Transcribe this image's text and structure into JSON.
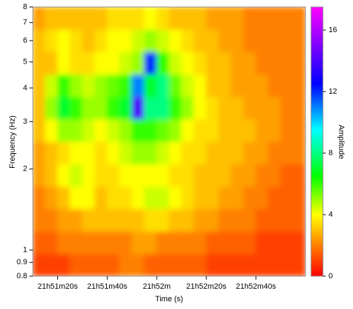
{
  "chart_data": {
    "type": "heatmap",
    "x_label": "Time (s)",
    "y_label": "Frequency (Hz)",
    "z_label": "Amplitude",
    "xbins": [
      78670,
      78675,
      78680,
      78685,
      78690,
      78695,
      78700,
      78705,
      78710,
      78715,
      78720,
      78725,
      78730,
      78735,
      78740,
      78745,
      78750,
      78755,
      78760,
      78765,
      78770,
      78775,
      78780
    ],
    "ybins": [
      0.8,
      0.969,
      1.174,
      1.423,
      1.724,
      2.088,
      2.53,
      3.065,
      3.713,
      4.499,
      5.45,
      6.603,
      8
    ],
    "values": [
      [
        1,
        1,
        1,
        1.5,
        1.5,
        1.5,
        1.5,
        2,
        2,
        1.5,
        1.5,
        1.5,
        1.5,
        1.5,
        1,
        1,
        1,
        1,
        1,
        1,
        1,
        1
      ],
      [
        1.5,
        1.5,
        2,
        2,
        2,
        2,
        2,
        2,
        2.5,
        2.5,
        2,
        2,
        2,
        2,
        1.5,
        1.5,
        1.5,
        1.5,
        1,
        1,
        1,
        1
      ],
      [
        2,
        2,
        2.5,
        2.5,
        3,
        3,
        3,
        3,
        3,
        3.5,
        3.5,
        3,
        3,
        2.5,
        2.5,
        2,
        2,
        2,
        1.5,
        1.5,
        1.5,
        1.5
      ],
      [
        2,
        2.5,
        3,
        4,
        4,
        3,
        3.5,
        3.5,
        4,
        4.5,
        4.5,
        4,
        3.5,
        3,
        3,
        2.5,
        2.5,
        2,
        2,
        1.5,
        1.5,
        1.5
      ],
      [
        2.5,
        3,
        4,
        4.5,
        4,
        3.5,
        3.5,
        4,
        4,
        4,
        4,
        3.5,
        3.5,
        3,
        3,
        3,
        2.5,
        2.5,
        2,
        2,
        1.5,
        1.5
      ],
      [
        2.5,
        3,
        3.5,
        4,
        4,
        3.5,
        4,
        4.5,
        5,
        5,
        4.5,
        4,
        3.5,
        3.5,
        3,
        3,
        3,
        2.5,
        2.5,
        2,
        2,
        2
      ],
      [
        3,
        4,
        5,
        5,
        4.5,
        4,
        4.5,
        5,
        6,
        6,
        5.5,
        5,
        4,
        3.5,
        3.5,
        3,
        3,
        3,
        2.5,
        2.5,
        2,
        2
      ],
      [
        3,
        5,
        7,
        6,
        5,
        5,
        6,
        7,
        14,
        8,
        8,
        6,
        5,
        4,
        3.5,
        3,
        3,
        2.5,
        2.5,
        2.5,
        2,
        2
      ],
      [
        3,
        4.5,
        6,
        5,
        4.5,
        5,
        5.5,
        6,
        11,
        7,
        8,
        5.5,
        4.5,
        4,
        3,
        3,
        2.5,
        2.5,
        2.5,
        2,
        2,
        2
      ],
      [
        3,
        3,
        4,
        3.5,
        3.5,
        4,
        4,
        4.5,
        5,
        12,
        6,
        4.5,
        4,
        3.5,
        3,
        3,
        2.5,
        2.5,
        2,
        2,
        2,
        2
      ],
      [
        3,
        3.5,
        4,
        3.5,
        3,
        3.5,
        4,
        4,
        4.5,
        5,
        4.5,
        4,
        3.5,
        3,
        3,
        2.5,
        2.5,
        2,
        2,
        2,
        2,
        2
      ],
      [
        2.5,
        3,
        3,
        3,
        3,
        3,
        3.5,
        3.5,
        3.5,
        4,
        3.5,
        3,
        3,
        3,
        2.5,
        2.5,
        2.5,
        2,
        2,
        2,
        2,
        2
      ]
    ],
    "xlim": [
      78670,
      78780
    ],
    "xticks": [
      {
        "value": 78680,
        "label": "21h51m20s"
      },
      {
        "value": 78700,
        "label": "21h51m40s"
      },
      {
        "value": 78720,
        "label": "21h52m"
      },
      {
        "value": 78740,
        "label": "21h52m20s"
      },
      {
        "value": 78760,
        "label": "21h52m40s"
      }
    ],
    "ylim": [
      0.8,
      8
    ],
    "ylog": true,
    "yticks": [
      0.8,
      0.9,
      1,
      2,
      3,
      4,
      5,
      6,
      7,
      8
    ],
    "zlim": [
      0,
      17.5
    ],
    "zticks": [
      0,
      4,
      8,
      12,
      16
    ],
    "colorscale": [
      [
        0,
        "#ff0000"
      ],
      [
        2,
        "#ff8000"
      ],
      [
        4,
        "#ffff00"
      ],
      [
        6.5,
        "#00ff00"
      ],
      [
        9.5,
        "#00ffff"
      ],
      [
        12.5,
        "#0000ff"
      ],
      [
        17.5,
        "#ff00ff"
      ]
    ]
  }
}
